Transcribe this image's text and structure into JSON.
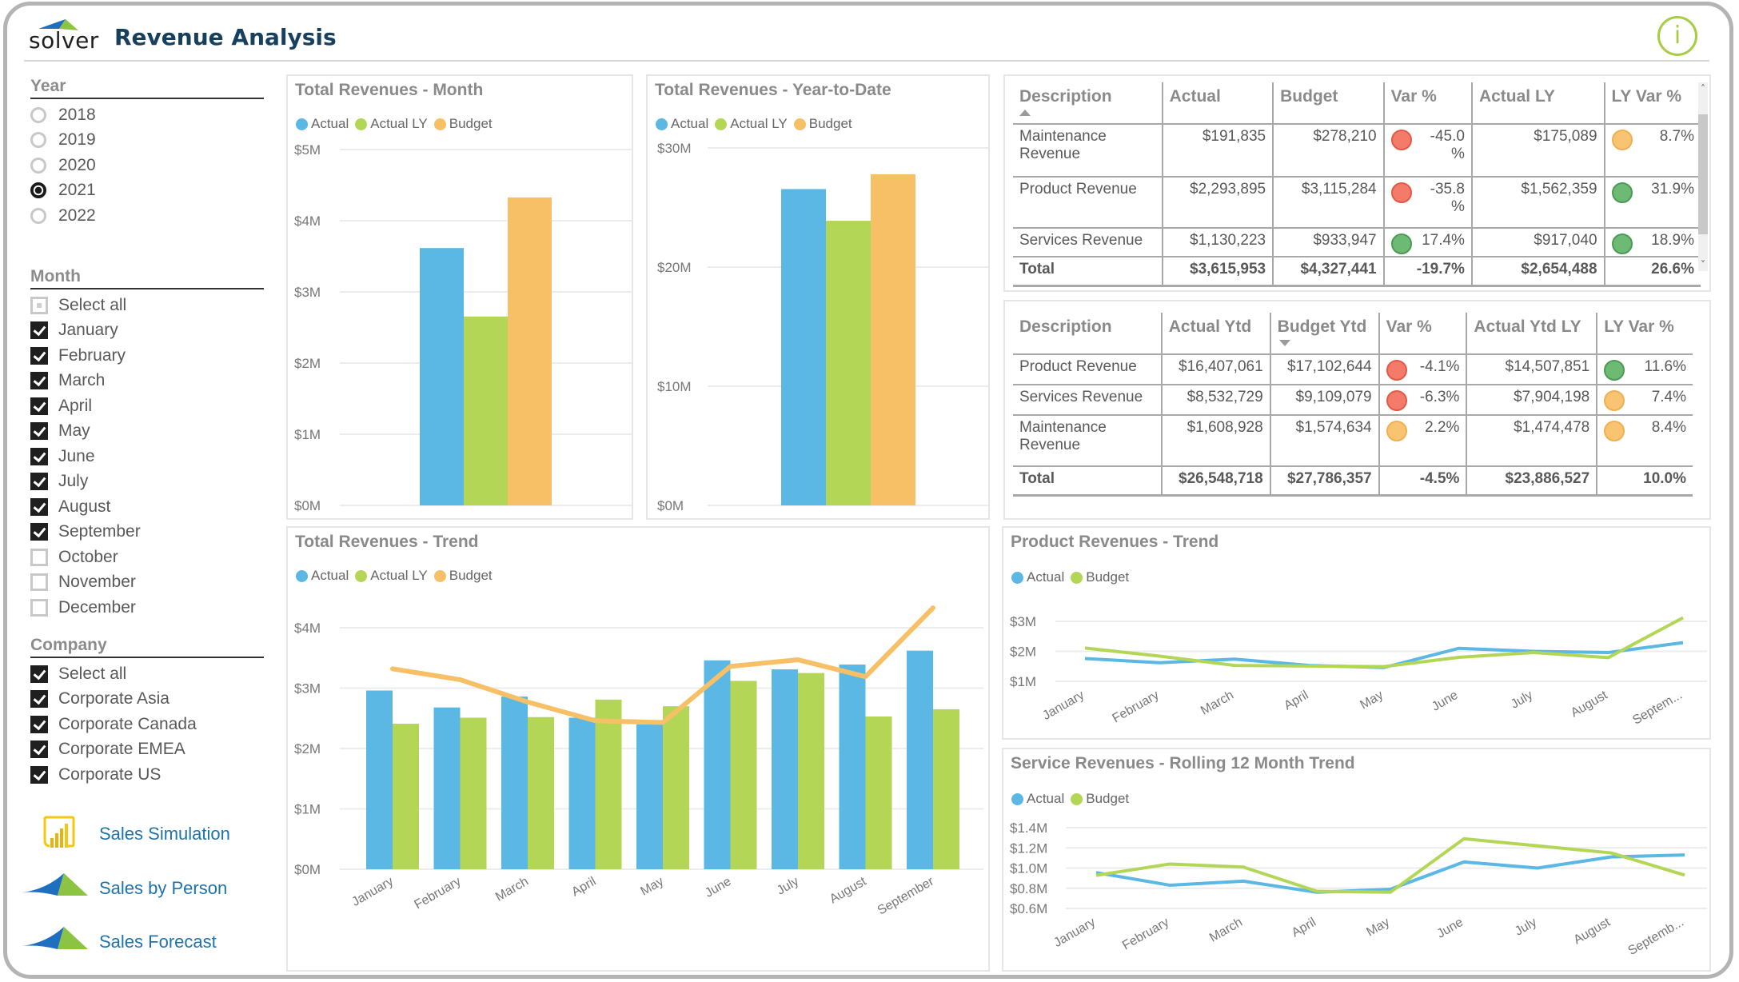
{
  "header": {
    "logo_text": "solver",
    "title": "Revenue Analysis",
    "info_label": "i"
  },
  "colors": {
    "actual": "#5bb7e3",
    "actual_ly": "#b4d657",
    "budget": "#f7c066",
    "title_navy": "#17405f",
    "link_blue": "#1e73a8",
    "info_green": "#a7cd45"
  },
  "slicers": {
    "year": {
      "title": "Year",
      "items": [
        {
          "label": "2018",
          "selected": false
        },
        {
          "label": "2019",
          "selected": false
        },
        {
          "label": "2020",
          "selected": false
        },
        {
          "label": "2021",
          "selected": true
        },
        {
          "label": "2022",
          "selected": false
        }
      ]
    },
    "month": {
      "title": "Month",
      "items": [
        {
          "label": "Select all",
          "state": "partial"
        },
        {
          "label": "January",
          "state": "on"
        },
        {
          "label": "February",
          "state": "on"
        },
        {
          "label": "March",
          "state": "on"
        },
        {
          "label": "April",
          "state": "on"
        },
        {
          "label": "May",
          "state": "on"
        },
        {
          "label": "June",
          "state": "on"
        },
        {
          "label": "July",
          "state": "on"
        },
        {
          "label": "August",
          "state": "on"
        },
        {
          "label": "September",
          "state": "on"
        },
        {
          "label": "October",
          "state": "off"
        },
        {
          "label": "November",
          "state": "off"
        },
        {
          "label": "December",
          "state": "off"
        }
      ]
    },
    "company": {
      "title": "Company",
      "items": [
        {
          "label": "Select all",
          "state": "on"
        },
        {
          "label": "Corporate Asia",
          "state": "on"
        },
        {
          "label": "Corporate Canada",
          "state": "on"
        },
        {
          "label": "Corporate EMEA",
          "state": "on"
        },
        {
          "label": "Corporate US",
          "state": "on"
        }
      ]
    }
  },
  "nav_links": [
    {
      "label": "Sales Simulation",
      "icon": "powerbi-report-icon"
    },
    {
      "label": "Sales by Person",
      "icon": "solver-logo-icon"
    },
    {
      "label": "Sales Forecast",
      "icon": "solver-logo-icon"
    }
  ],
  "table_month": {
    "columns": [
      "Description",
      "Actual",
      "Budget",
      "Var %",
      "Actual LY",
      "LY Var %"
    ],
    "sort": {
      "column": "Description",
      "direction": "asc"
    },
    "rows": [
      {
        "description": "Maintenance Revenue",
        "actual": "$191,835",
        "budget": "$278,210",
        "var_pct": "-45.0 %",
        "var_status": "red",
        "actual_ly": "$175,089",
        "ly_var_pct": "8.7%",
        "ly_status": "amber"
      },
      {
        "description": "Product Revenue",
        "actual": "$2,293,895",
        "budget": "$3,115,284",
        "var_pct": "-35.8 %",
        "var_status": "red",
        "actual_ly": "$1,562,359",
        "ly_var_pct": "31.9%",
        "ly_status": "green"
      },
      {
        "description": "Services Revenue",
        "actual": "$1,130,223",
        "budget": "$933,947",
        "var_pct": "17.4%",
        "var_status": "green",
        "actual_ly": "$917,040",
        "ly_var_pct": "18.9%",
        "ly_status": "green"
      }
    ],
    "total": {
      "description": "Total",
      "actual": "$3,615,953",
      "budget": "$4,327,441",
      "var_pct": "-19.7%",
      "actual_ly": "$2,654,488",
      "ly_var_pct": "26.6%"
    }
  },
  "table_ytd": {
    "columns": [
      "Description",
      "Actual Ytd",
      "Budget Ytd",
      "Var %",
      "Actual Ytd LY",
      "LY Var %"
    ],
    "sort": {
      "column": "Budget Ytd",
      "direction": "desc"
    },
    "rows": [
      {
        "description": "Product Revenue",
        "actual": "$16,407,061",
        "budget": "$17,102,644",
        "var_pct": "-4.1%",
        "var_status": "red",
        "actual_ly": "$14,507,851",
        "ly_var_pct": "11.6%",
        "ly_status": "green"
      },
      {
        "description": "Services Revenue",
        "actual": "$8,532,729",
        "budget": "$9,109,079",
        "var_pct": "-6.3%",
        "var_status": "red",
        "actual_ly": "$7,904,198",
        "ly_var_pct": "7.4%",
        "ly_status": "amber"
      },
      {
        "description": "Maintenance Revenue",
        "actual": "$1,608,928",
        "budget": "$1,574,634",
        "var_pct": "2.2%",
        "var_status": "amber",
        "actual_ly": "$1,474,478",
        "ly_var_pct": "8.4%",
        "ly_status": "amber"
      }
    ],
    "total": {
      "description": "Total",
      "actual": "$26,548,718",
      "budget": "$27,786,357",
      "var_pct": "-4.5%",
      "actual_ly": "$23,886,527",
      "ly_var_pct": "10.0%"
    }
  },
  "chart_data": [
    {
      "id": "month",
      "type": "bar",
      "title": "Total Revenues - Month",
      "legend": [
        "Actual",
        "Actual LY",
        "Budget"
      ],
      "legend_position": "top-left",
      "categories": [
        ""
      ],
      "series": [
        {
          "name": "Actual",
          "values": [
            3.616
          ]
        },
        {
          "name": "Actual LY",
          "values": [
            2.654
          ]
        },
        {
          "name": "Budget",
          "values": [
            4.327
          ]
        }
      ],
      "yticks": [
        "$0M",
        "$1M",
        "$2M",
        "$3M",
        "$4M",
        "$5M"
      ],
      "ylim": [
        0,
        5
      ],
      "unit": "$M",
      "grid": true
    },
    {
      "id": "ytd",
      "type": "bar",
      "title": "Total Revenues - Year-to-Date",
      "legend": [
        "Actual",
        "Actual LY",
        "Budget"
      ],
      "legend_position": "top-left",
      "categories": [
        ""
      ],
      "series": [
        {
          "name": "Actual",
          "values": [
            26.549
          ]
        },
        {
          "name": "Actual LY",
          "values": [
            23.887
          ]
        },
        {
          "name": "Budget",
          "values": [
            27.786
          ]
        }
      ],
      "yticks": [
        "$0M",
        "$10M",
        "$20M",
        "$30M"
      ],
      "ylim": [
        0,
        30
      ],
      "unit": "$M",
      "grid": true
    },
    {
      "id": "trend",
      "type": "bar",
      "title": "Total Revenues - Trend",
      "legend": [
        "Actual",
        "Actual LY",
        "Budget"
      ],
      "legend_position": "top-left",
      "categories": [
        "January",
        "February",
        "March",
        "April",
        "May",
        "June",
        "July",
        "August",
        "September"
      ],
      "series": [
        {
          "name": "Actual",
          "kind": "bar",
          "values": [
            2.96,
            2.68,
            2.86,
            2.51,
            2.4,
            3.46,
            3.31,
            3.39,
            3.62
          ]
        },
        {
          "name": "Actual LY",
          "kind": "bar",
          "values": [
            2.41,
            2.51,
            2.52,
            2.81,
            2.7,
            3.12,
            3.25,
            2.53,
            2.65
          ]
        },
        {
          "name": "Budget",
          "kind": "line",
          "values": [
            3.32,
            3.14,
            2.77,
            2.46,
            2.43,
            3.36,
            3.47,
            3.19,
            4.33
          ]
        }
      ],
      "yticks": [
        "$0M",
        "$1M",
        "$2M",
        "$3M",
        "$4M"
      ],
      "ylim": [
        0,
        4.7
      ],
      "unit": "$M",
      "grid": true
    },
    {
      "id": "product",
      "type": "line",
      "title": "Product Revenues - Trend",
      "legend": [
        "Actual",
        "Budget"
      ],
      "legend_position": "top-left",
      "categories": [
        "January",
        "February",
        "March",
        "April",
        "May",
        "June",
        "July",
        "August",
        "Septem..."
      ],
      "series": [
        {
          "name": "Actual",
          "values": [
            1.76,
            1.62,
            1.74,
            1.53,
            1.46,
            2.1,
            2.0,
            1.96,
            2.29
          ]
        },
        {
          "name": "Budget",
          "values": [
            2.11,
            1.84,
            1.53,
            1.51,
            1.49,
            1.8,
            1.96,
            1.79,
            3.12
          ]
        }
      ],
      "yticks": [
        "$1M",
        "$2M",
        "$3M"
      ],
      "ylim": [
        1,
        3
      ],
      "unit": "$M",
      "grid": true
    },
    {
      "id": "service",
      "type": "line",
      "title": "Service Revenues - Rolling 12 Month Trend",
      "legend": [
        "Actual",
        "Budget"
      ],
      "legend_position": "top-left",
      "categories": [
        "January",
        "February",
        "March",
        "April",
        "May",
        "June",
        "July",
        "August",
        "Septemb..."
      ],
      "series": [
        {
          "name": "Actual",
          "values": [
            0.955,
            0.83,
            0.87,
            0.76,
            0.79,
            1.06,
            1.0,
            1.11,
            1.13
          ]
        },
        {
          "name": "Budget",
          "values": [
            0.928,
            1.04,
            1.01,
            0.77,
            0.76,
            1.29,
            1.22,
            1.15,
            0.93
          ]
        }
      ],
      "yticks": [
        "$0.6M",
        "$0.8M",
        "$1.0M",
        "$1.2M",
        "$1.4M"
      ],
      "ylim": [
        0.6,
        1.4
      ],
      "unit": "$M",
      "grid": true
    }
  ]
}
